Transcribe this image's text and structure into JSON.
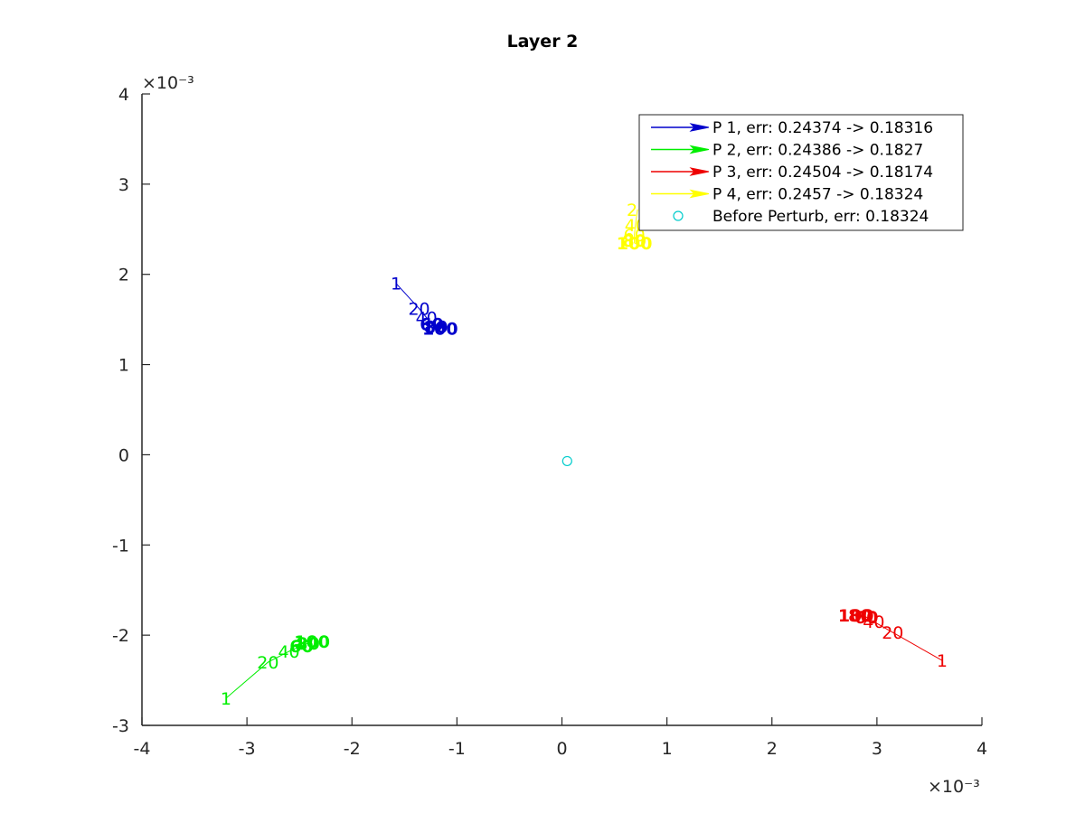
{
  "chart_data": {
    "type": "line",
    "title": "Layer 2",
    "xlabel": "",
    "ylabel": "",
    "xlim": [
      -4,
      4
    ],
    "ylim": [
      -3,
      4
    ],
    "xticks": [
      "-4",
      "-3",
      "-2",
      "-1",
      "0",
      "1",
      "2",
      "3",
      "4"
    ],
    "yticks": [
      "-3",
      "-2",
      "-1",
      "0",
      "1",
      "2",
      "3",
      "4"
    ],
    "x_exponent": "×10⁻³",
    "y_exponent": "×10⁻³",
    "grid": false,
    "legend_position": "top-right",
    "series": [
      {
        "name": "P 1, err: 0.24374 -> 0.18316",
        "color": "#0000cc",
        "marker": "arrow",
        "x": [
          -1.58,
          -1.36,
          -1.29,
          -1.24,
          -1.2,
          -1.16
        ],
        "y": [
          1.9,
          1.62,
          1.52,
          1.45,
          1.42,
          1.4
        ],
        "point_labels": [
          "1",
          "20",
          "40",
          "60",
          "80",
          "100"
        ]
      },
      {
        "name": "P 2, err: 0.24386 -> 0.1827",
        "color": "#00ee00",
        "marker": "arrow",
        "x": [
          -3.2,
          -2.8,
          -2.6,
          -2.48,
          -2.42,
          -2.38
        ],
        "y": [
          -2.7,
          -2.3,
          -2.18,
          -2.12,
          -2.09,
          -2.07
        ],
        "point_labels": [
          "1",
          "20",
          "40",
          "60",
          "80",
          "100"
        ]
      },
      {
        "name": "P 3, err: 0.24504 -> 0.18174",
        "color": "#ee0000",
        "marker": "arrow",
        "x": [
          3.62,
          3.15,
          2.97,
          2.9,
          2.84,
          2.8
        ],
        "y": [
          -2.28,
          -1.97,
          -1.85,
          -1.8,
          -1.78,
          -1.78
        ],
        "point_labels": [
          "1",
          "20",
          "40",
          "60",
          "80",
          "100"
        ]
      },
      {
        "name": "P 4, err: 0.2457 -> 0.18324",
        "color": "#ffff00",
        "marker": "arrow",
        "x": [
          0.72,
          0.7,
          0.69,
          0.69,
          0.69,
          0.7
        ],
        "y": [
          2.72,
          2.55,
          2.44,
          2.38,
          2.35,
          2.34
        ],
        "point_labels": [
          "20",
          "40",
          "60",
          "80",
          "100",
          ""
        ]
      },
      {
        "name": "Before Perturb, err: 0.18324",
        "color": "#00cccc",
        "marker": "circle",
        "x": [
          0.05
        ],
        "y": [
          -0.07
        ],
        "point_labels": []
      }
    ]
  }
}
